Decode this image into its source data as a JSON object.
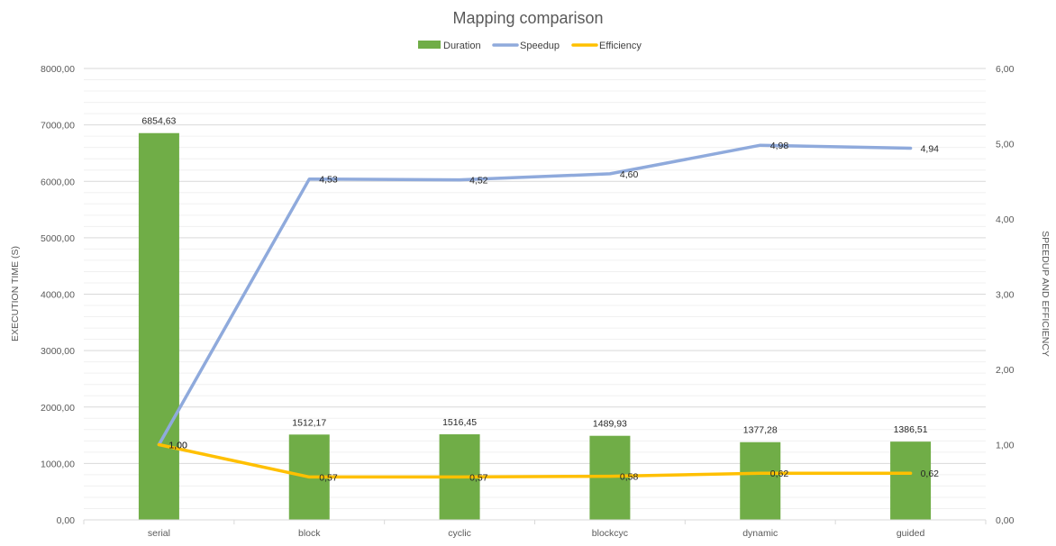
{
  "chart_data": {
    "type": "bar",
    "title": "Mapping comparison",
    "categories": [
      "serial",
      "block",
      "cyclic",
      "blockcyc",
      "dynamic",
      "guided"
    ],
    "series": [
      {
        "name": "Duration",
        "kind": "bar",
        "axis": "left",
        "color": "#70ad47",
        "values": [
          6854.63,
          1512.17,
          1516.45,
          1489.93,
          1377.28,
          1386.51
        ],
        "labels": [
          "6854,63",
          "1512,17",
          "1516,45",
          "1489,93",
          "1377,28",
          "1386,51"
        ]
      },
      {
        "name": "Speedup",
        "kind": "line",
        "axis": "right",
        "color": "#8faadc",
        "values": [
          1.0,
          4.53,
          4.52,
          4.6,
          4.98,
          4.94
        ],
        "labels": [
          "1,00",
          "4,53",
          "4,52",
          "4,60",
          "4,98",
          "4,94"
        ]
      },
      {
        "name": "Efficiency",
        "kind": "line",
        "axis": "right",
        "color": "#ffc000",
        "values": [
          1.0,
          0.57,
          0.57,
          0.58,
          0.62,
          0.62
        ],
        "labels": [
          "1,00",
          "0,57",
          "0,57",
          "0,58",
          "0,62",
          "0,62"
        ]
      }
    ],
    "ylabel": "EXECUTION TIME (S)",
    "y2label": "SPEEDUP AND EFFICIENCY",
    "ylim": [
      0,
      8000
    ],
    "y2lim": [
      0,
      6
    ],
    "yticks": [
      "0,00",
      "1000,00",
      "2000,00",
      "3000,00",
      "4000,00",
      "5000,00",
      "6000,00",
      "7000,00",
      "8000,00"
    ],
    "y2ticks": [
      "0,00",
      "1,00",
      "2,00",
      "3,00",
      "4,00",
      "5,00",
      "6,00"
    ],
    "grid": true,
    "legend": "top-center"
  }
}
